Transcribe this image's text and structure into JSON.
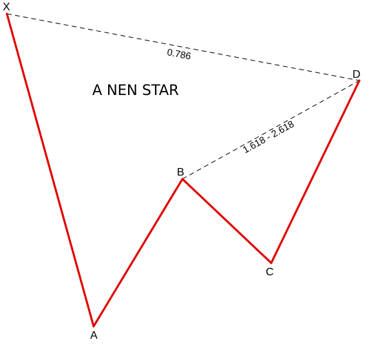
{
  "title": "A NEN STAR",
  "points": {
    "X": "X",
    "A": "A",
    "B": "B",
    "C": "C",
    "D": "D"
  },
  "ratios": {
    "xd": "0.786",
    "bd": "1.618 - 2.618"
  },
  "colors": {
    "pattern_line": "#e00000",
    "dashed_line": "#000000",
    "background": "#ffffff"
  }
}
